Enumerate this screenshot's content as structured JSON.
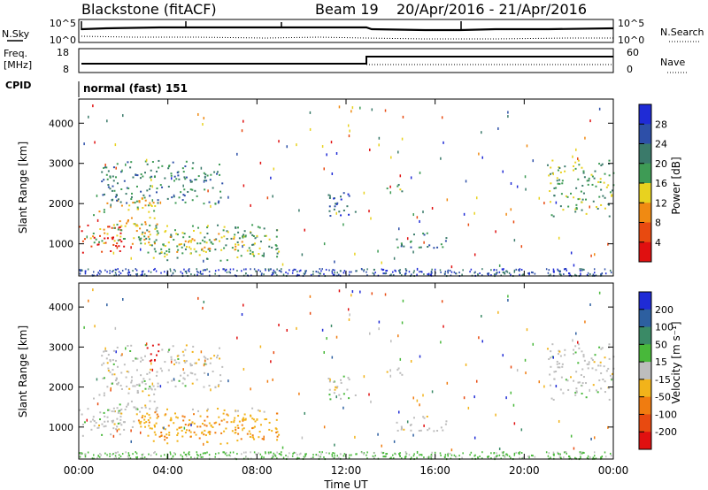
{
  "header": {
    "station": "Blackstone (fitACF)",
    "beam": "Beam 19",
    "date_range": "20/Apr/2016 - 21/Apr/2016"
  },
  "side_labels": {
    "nsky": "N.Sky",
    "freq": "Freq.",
    "freq_unit": "[MHz]",
    "cpid": "CPID",
    "nsearch": "N.Search",
    "nave": "Nave"
  },
  "noise_panel": {
    "tick_top": "10^5",
    "tick_bottom": "10^0",
    "tick_top_right": "10^5",
    "tick_bottom_right": "10^0"
  },
  "freq_panel": {
    "ticks_left": [
      "18",
      "8"
    ],
    "ticks_right": [
      "60",
      "0"
    ]
  },
  "cpid_text": "normal (fast) 151",
  "colors": {
    "power": [
      "#1f2bd6",
      "#2d4fa8",
      "#3a7a6a",
      "#3e9b55",
      "#e8d21f",
      "#f08a12",
      "#e84a10",
      "#e01010"
    ],
    "velocity": [
      "#1f2bd6",
      "#2d5fa0",
      "#3a8a66",
      "#48b83a",
      "#bdbdbd",
      "#f2b31a",
      "#f07c10",
      "#e84a10",
      "#e01010"
    ]
  },
  "chart_data": [
    {
      "type": "heatmap",
      "name": "power",
      "ylabel": "Slant Range [km]",
      "y_ticks": [
        "4000",
        "3000",
        "2000",
        "1000"
      ],
      "x_ticks": [
        "00:00",
        "04:00",
        "08:00",
        "12:00",
        "16:00",
        "20:00",
        "00:00"
      ],
      "colorbar": {
        "label": "Power [dB]",
        "ticks": [
          "28",
          "24",
          "20",
          "16",
          "12",
          "8",
          "4"
        ]
      },
      "ylim": [
        200,
        4600
      ],
      "xlim": [
        0,
        24
      ],
      "regions": [
        {
          "t0": 0.0,
          "t1": 2.0,
          "r0": 800,
          "r1": 1500,
          "level": 7
        },
        {
          "t0": 0.5,
          "t1": 3.5,
          "r0": 1000,
          "r1": 2200,
          "level": 4
        },
        {
          "t0": 1.0,
          "t1": 6.5,
          "r0": 2000,
          "r1": 3100,
          "level": 2
        },
        {
          "t0": 2.5,
          "t1": 9.0,
          "r0": 600,
          "r1": 1500,
          "level": 3
        },
        {
          "t0": 4.0,
          "t1": 7.5,
          "r0": 800,
          "r1": 1300,
          "level": 4
        },
        {
          "t0": 11.0,
          "t1": 12.5,
          "r0": 1700,
          "r1": 2300,
          "level": 1
        },
        {
          "t0": 14.2,
          "t1": 16.5,
          "r0": 900,
          "r1": 1300,
          "level": 2
        },
        {
          "t0": 13.8,
          "t1": 14.5,
          "r0": 2300,
          "r1": 2600,
          "level": 3
        },
        {
          "t0": 21.0,
          "t1": 24.0,
          "r0": 1700,
          "r1": 3100,
          "level": 3
        }
      ]
    },
    {
      "type": "heatmap",
      "name": "velocity",
      "ylabel": "Slant Range [km]",
      "y_ticks": [
        "4000",
        "3000",
        "2000",
        "1000"
      ],
      "x_ticks": [
        "00:00",
        "04:00",
        "08:00",
        "12:00",
        "16:00",
        "20:00",
        "00:00"
      ],
      "xlabel": "Time UT",
      "colorbar": {
        "label": "Velocity [m s⁻¹]",
        "ticks": [
          "200",
          "100",
          "50",
          "15",
          "-15",
          "-50",
          "-100",
          "-200"
        ]
      },
      "ylim": [
        200,
        4600
      ],
      "xlim": [
        0,
        24
      ]
    }
  ]
}
